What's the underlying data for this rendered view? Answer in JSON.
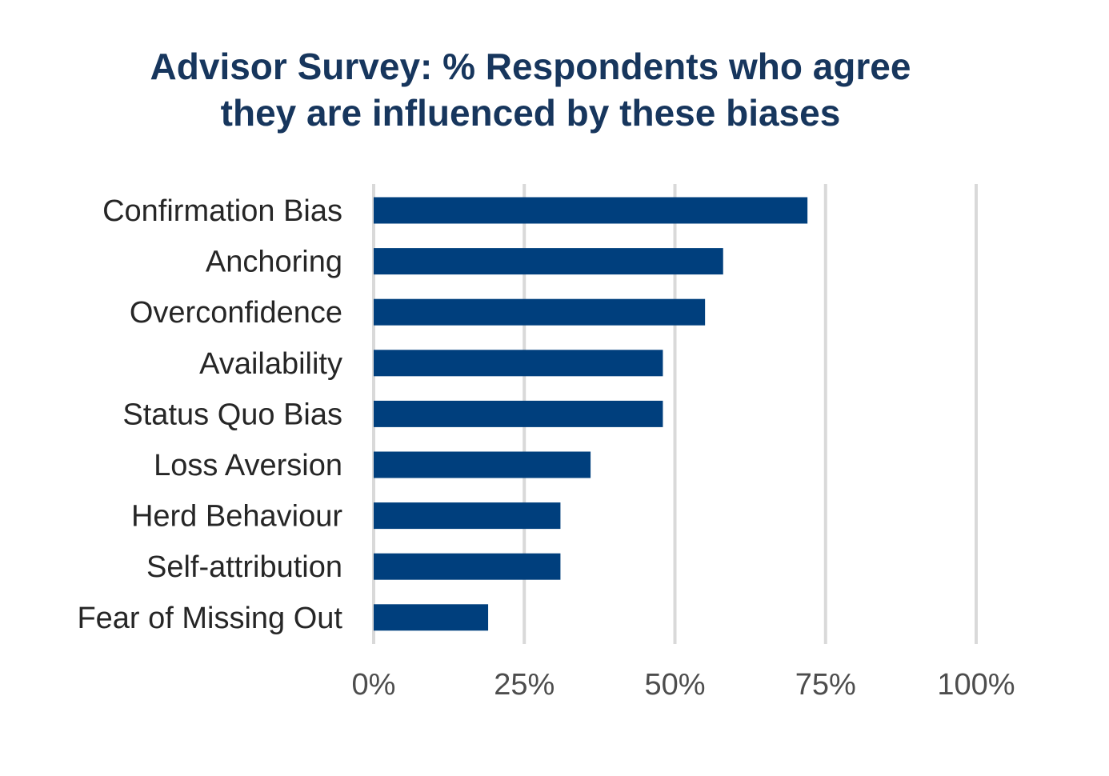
{
  "chart_data": {
    "type": "bar",
    "orientation": "horizontal",
    "title_lines": [
      "Advisor Survey: % Respondents who agree",
      "they are influenced by these biases"
    ],
    "categories": [
      "Confirmation Bias",
      "Anchoring",
      "Overconfidence",
      "Availability",
      "Status Quo Bias",
      "Loss Aversion",
      "Herd Behaviour",
      "Self-attribution",
      "Fear of Missing Out"
    ],
    "values": [
      72,
      58,
      55,
      48,
      48,
      36,
      31,
      31,
      19
    ],
    "x_ticks": [
      0,
      25,
      50,
      75,
      100
    ],
    "x_tick_labels": [
      "0%",
      "25%",
      "50%",
      "75%",
      "100%"
    ],
    "xlim": [
      0,
      100
    ],
    "xlabel": "",
    "ylabel": "",
    "grid": true,
    "legend": "none",
    "bar_color": "#003f7d"
  }
}
